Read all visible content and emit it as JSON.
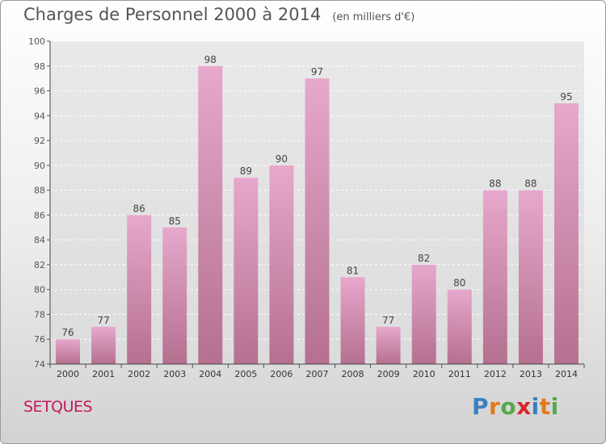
{
  "page": {
    "title": "Charges de Personnel 2000 à 2014",
    "subtitle": "(en milliers d'€)",
    "commune": "SETQUES",
    "logo": {
      "text": "Proxiti",
      "letter_colors": [
        "#3a7fc1",
        "#e07a1c",
        "#58a84a",
        "#d7262b",
        "#3a7fc1",
        "#e07a1c",
        "#58a84a"
      ]
    }
  },
  "chart_data": {
    "type": "bar",
    "title": "Charges de Personnel 2000 à 2014",
    "subtitle": "(en milliers d'€)",
    "categories": [
      "2000",
      "2001",
      "2002",
      "2003",
      "2004",
      "2005",
      "2006",
      "2007",
      "2008",
      "2009",
      "2010",
      "2011",
      "2012",
      "2013",
      "2014"
    ],
    "values": [
      76,
      77,
      86,
      85,
      98,
      89,
      90,
      97,
      81,
      77,
      82,
      80,
      88,
      88,
      95
    ],
    "ylim": [
      74,
      100
    ],
    "yticks": [
      74,
      76,
      78,
      80,
      82,
      84,
      86,
      88,
      90,
      92,
      94,
      96,
      98,
      100
    ],
    "grid": true,
    "bar_color_top": "#e6a8cc",
    "bar_color_bottom": "#b5708f"
  }
}
